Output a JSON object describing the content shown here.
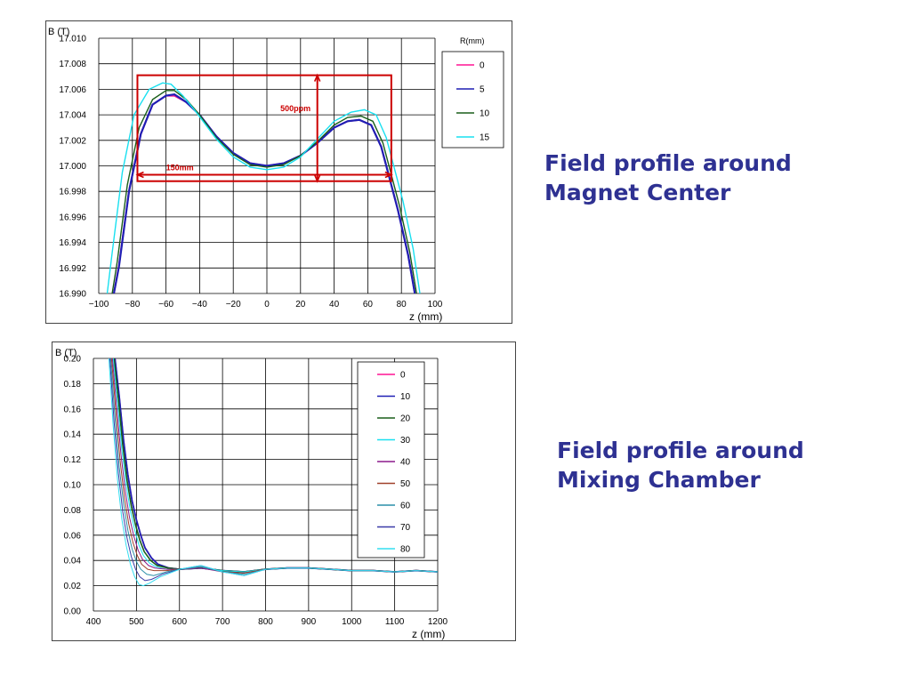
{
  "captions": {
    "top": [
      "Field profile around",
      "Magnet Center"
    ],
    "bottom": [
      "Field profile around",
      "Mixing Chamber"
    ]
  },
  "colors": {
    "caption": "#2e3192",
    "annotation": "#cc0000"
  },
  "chart_data": [
    {
      "type": "line",
      "ylabel": "B (T)",
      "xlabel": "z (mm)",
      "xlim": [
        -100,
        100
      ],
      "ylim": [
        16.99,
        17.01
      ],
      "xticks": [
        -100,
        -80,
        -60,
        -40,
        -20,
        0,
        20,
        40,
        60,
        80,
        100
      ],
      "yticks": [
        "16.990",
        "16.992",
        "16.994",
        "16.996",
        "16.998",
        "17.000",
        "17.002",
        "17.004",
        "17.006",
        "17.008",
        "17.010"
      ],
      "grid": true,
      "legend_title": "R(mm)",
      "legend_position": "right",
      "annotations": [
        "500ppm",
        "150mm"
      ],
      "series": [
        {
          "name": "0",
          "color": "#ff1493",
          "width": 2,
          "x": [
            -91,
            -88,
            -82,
            -75,
            -68,
            -60,
            -55,
            -48,
            -40,
            -30,
            -20,
            -10,
            0,
            10,
            20,
            30,
            40,
            48,
            55,
            62,
            68,
            72,
            78,
            84,
            88
          ],
          "y": [
            16.99,
            16.9922,
            16.998,
            17.0025,
            17.0048,
            17.0055,
            17.0055,
            17.005,
            17.004,
            17.0023,
            17.001,
            17.0002,
            17.0,
            17.0002,
            17.0008,
            17.0018,
            17.003,
            17.0035,
            17.0036,
            17.0032,
            17.0015,
            16.9995,
            16.9965,
            16.993,
            16.99
          ]
        },
        {
          "name": "5",
          "color": "#1f1fb4",
          "width": 2.2,
          "x": [
            -91,
            -88,
            -82,
            -75,
            -68,
            -60,
            -55,
            -48,
            -40,
            -30,
            -20,
            -10,
            0,
            10,
            20,
            30,
            40,
            48,
            55,
            62,
            68,
            72,
            78,
            84,
            88
          ],
          "y": [
            16.99,
            16.9921,
            16.998,
            17.0025,
            17.0048,
            17.0055,
            17.0056,
            17.005,
            17.004,
            17.0023,
            17.001,
            17.0002,
            17.0,
            17.0002,
            17.0008,
            17.0018,
            17.003,
            17.0035,
            17.0036,
            17.0032,
            17.0015,
            16.9995,
            16.9965,
            16.993,
            16.99
          ]
        },
        {
          "name": "10",
          "color": "#1a5e1a",
          "width": 1.4,
          "x": [
            -92,
            -89,
            -83,
            -76,
            -68,
            -60,
            -55,
            -48,
            -40,
            -30,
            -20,
            -10,
            0,
            10,
            20,
            30,
            40,
            48,
            56,
            63,
            69,
            73,
            79,
            85,
            89
          ],
          "y": [
            16.99,
            16.9925,
            16.9985,
            17.003,
            17.0052,
            17.0059,
            17.0059,
            17.0052,
            17.004,
            17.0022,
            17.0009,
            17.0001,
            16.9999,
            17.0001,
            17.0008,
            17.0019,
            17.0032,
            17.0038,
            17.0039,
            17.0035,
            17.0018,
            16.9998,
            16.9968,
            16.9932,
            16.99
          ]
        },
        {
          "name": "15",
          "color": "#19e0f0",
          "width": 1.4,
          "x": [
            -95,
            -92,
            -86,
            -79,
            -70,
            -62,
            -57,
            -50,
            -42,
            -30,
            -20,
            -10,
            0,
            10,
            20,
            30,
            40,
            50,
            58,
            65,
            71,
            75,
            81,
            87,
            91
          ],
          "y": [
            16.99,
            16.9932,
            16.9995,
            17.004,
            17.006,
            17.0065,
            17.0064,
            17.0055,
            17.0042,
            17.0021,
            17.0007,
            16.9999,
            16.9997,
            16.9999,
            17.0007,
            17.0021,
            17.0035,
            17.0042,
            17.0044,
            17.004,
            17.0022,
            17.0002,
            16.9972,
            16.9935,
            16.99
          ]
        }
      ]
    },
    {
      "type": "line",
      "ylabel": "B (T)",
      "xlabel": "z (mm)",
      "xlim": [
        400,
        1200
      ],
      "ylim": [
        0,
        0.2
      ],
      "xticks": [
        400,
        500,
        600,
        700,
        800,
        900,
        1000,
        1100,
        1200
      ],
      "yticks": [
        "0.00",
        "0.02",
        "0.04",
        "0.06",
        "0.08",
        "0.10",
        "0.12",
        "0.14",
        "0.16",
        "0.18",
        "0.20"
      ],
      "grid": true,
      "legend_title": "R(mm)",
      "legend_position": "top-right",
      "series": [
        {
          "name": "0",
          "color": "#ff1493",
          "width": 1.6,
          "x": [
            450,
            460,
            470,
            480,
            490,
            500,
            510,
            520,
            535,
            550,
            575,
            600,
            650,
            700,
            750,
            800,
            850,
            900,
            950,
            1000,
            1050,
            1100,
            1150,
            1200
          ],
          "y": [
            0.2,
            0.17,
            0.135,
            0.108,
            0.087,
            0.072,
            0.06,
            0.05,
            0.042,
            0.037,
            0.034,
            0.033,
            0.034,
            0.032,
            0.031,
            0.033,
            0.034,
            0.034,
            0.033,
            0.032,
            0.032,
            0.031,
            0.032,
            0.031
          ]
        },
        {
          "name": "10",
          "color": "#1f1fb4",
          "width": 1.8,
          "x": [
            450,
            460,
            470,
            480,
            490,
            500,
            510,
            520,
            535,
            550,
            575,
            600,
            650,
            700,
            750,
            800,
            850,
            900,
            950,
            1000,
            1050,
            1100,
            1150,
            1200
          ],
          "y": [
            0.2,
            0.17,
            0.135,
            0.108,
            0.087,
            0.072,
            0.06,
            0.05,
            0.042,
            0.037,
            0.034,
            0.033,
            0.034,
            0.032,
            0.031,
            0.033,
            0.034,
            0.034,
            0.033,
            0.032,
            0.032,
            0.031,
            0.032,
            0.031
          ]
        },
        {
          "name": "20",
          "color": "#1a5e1a",
          "width": 1.6,
          "x": [
            448,
            458,
            468,
            478,
            488,
            498,
            508,
            518,
            533,
            548,
            573,
            600,
            650,
            700,
            750,
            800,
            850,
            900,
            950,
            1000,
            1050,
            1100,
            1150,
            1200
          ],
          "y": [
            0.2,
            0.168,
            0.132,
            0.104,
            0.083,
            0.068,
            0.056,
            0.047,
            0.04,
            0.036,
            0.034,
            0.033,
            0.034,
            0.032,
            0.031,
            0.033,
            0.034,
            0.034,
            0.033,
            0.032,
            0.032,
            0.031,
            0.032,
            0.031
          ]
        },
        {
          "name": "30",
          "color": "#19e0f0",
          "width": 1,
          "x": [
            446,
            456,
            466,
            476,
            486,
            496,
            506,
            516,
            530,
            545,
            570,
            600,
            650,
            700,
            750,
            800,
            850,
            900,
            950,
            1000,
            1050,
            1100,
            1150,
            1200
          ],
          "y": [
            0.2,
            0.165,
            0.128,
            0.1,
            0.079,
            0.064,
            0.052,
            0.044,
            0.038,
            0.035,
            0.033,
            0.033,
            0.034,
            0.032,
            0.031,
            0.033,
            0.034,
            0.034,
            0.033,
            0.032,
            0.032,
            0.031,
            0.032,
            0.031
          ]
        },
        {
          "name": "40",
          "color": "#8b1a8b",
          "width": 1,
          "x": [
            444,
            454,
            464,
            474,
            484,
            494,
            504,
            514,
            528,
            543,
            570,
            600,
            650,
            700,
            750,
            800,
            850,
            900,
            950,
            1000,
            1050,
            1100,
            1150,
            1200
          ],
          "y": [
            0.2,
            0.162,
            0.124,
            0.095,
            0.074,
            0.059,
            0.048,
            0.041,
            0.036,
            0.034,
            0.033,
            0.033,
            0.034,
            0.031,
            0.03,
            0.033,
            0.034,
            0.034,
            0.033,
            0.032,
            0.032,
            0.031,
            0.032,
            0.031
          ]
        },
        {
          "name": "50",
          "color": "#a0402a",
          "width": 1,
          "x": [
            442,
            452,
            462,
            472,
            482,
            492,
            502,
            512,
            526,
            541,
            570,
            600,
            650,
            700,
            750,
            800,
            850,
            900,
            950,
            1000,
            1050,
            1100,
            1150,
            1200
          ],
          "y": [
            0.2,
            0.158,
            0.119,
            0.09,
            0.069,
            0.054,
            0.044,
            0.037,
            0.033,
            0.032,
            0.032,
            0.033,
            0.035,
            0.031,
            0.03,
            0.033,
            0.034,
            0.034,
            0.033,
            0.032,
            0.032,
            0.031,
            0.032,
            0.031
          ]
        },
        {
          "name": "60",
          "color": "#2a8fa8",
          "width": 1,
          "x": [
            440,
            450,
            460,
            470,
            480,
            490,
            500,
            510,
            524,
            540,
            570,
            600,
            650,
            700,
            750,
            800,
            850,
            900,
            950,
            1000,
            1050,
            1100,
            1150,
            1200
          ],
          "y": [
            0.2,
            0.154,
            0.114,
            0.085,
            0.064,
            0.049,
            0.039,
            0.033,
            0.029,
            0.028,
            0.031,
            0.033,
            0.035,
            0.031,
            0.029,
            0.033,
            0.034,
            0.034,
            0.033,
            0.032,
            0.032,
            0.031,
            0.032,
            0.031
          ]
        },
        {
          "name": "70",
          "color": "#3a3aa8",
          "width": 1,
          "x": [
            438,
            448,
            458,
            468,
            478,
            488,
            498,
            508,
            520,
            535,
            560,
            600,
            650,
            700,
            750,
            800,
            850,
            900,
            950,
            1000,
            1050,
            1100,
            1150,
            1200
          ],
          "y": [
            0.2,
            0.15,
            0.109,
            0.079,
            0.058,
            0.043,
            0.033,
            0.027,
            0.024,
            0.025,
            0.029,
            0.033,
            0.036,
            0.031,
            0.028,
            0.033,
            0.034,
            0.034,
            0.033,
            0.032,
            0.032,
            0.031,
            0.032,
            0.031
          ]
        },
        {
          "name": "80",
          "color": "#33ddf0",
          "width": 1,
          "x": [
            436,
            446,
            456,
            466,
            476,
            486,
            496,
            506,
            516,
            530,
            555,
            600,
            650,
            700,
            750,
            800,
            850,
            900,
            950,
            1000,
            1050,
            1100,
            1150,
            1200
          ],
          "y": [
            0.2,
            0.146,
            0.104,
            0.073,
            0.052,
            0.037,
            0.027,
            0.021,
            0.02,
            0.022,
            0.027,
            0.033,
            0.036,
            0.031,
            0.028,
            0.033,
            0.034,
            0.034,
            0.033,
            0.032,
            0.032,
            0.031,
            0.032,
            0.031
          ]
        }
      ]
    }
  ]
}
